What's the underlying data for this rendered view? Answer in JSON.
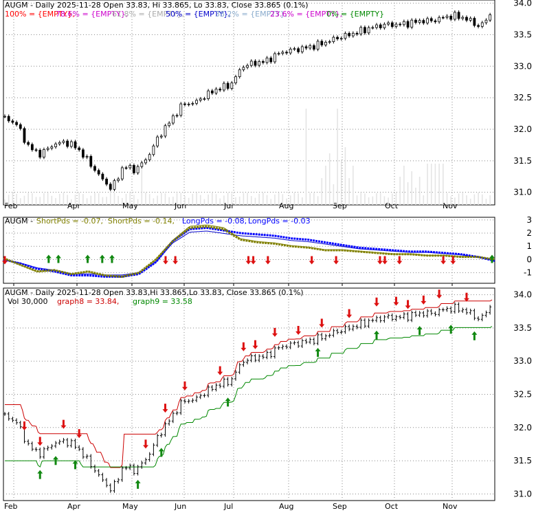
{
  "chart_data": [
    {
      "type": "candlestick",
      "panel": "price",
      "title": "AUGM - Daily 2025-11-28 Open 33.83, Hi 33.865, Lo 33.83, Close 33.865 (0.1%)",
      "fib_legend": [
        {
          "label": "100% = {EMPTY},",
          "color": "#ff0000"
        },
        {
          "label": "78.6% = {EMPTY},",
          "color": "#cc00cc"
        },
        {
          "label": "61.8% = {EMPTY},",
          "color": "#aaaaaa"
        },
        {
          "label": "50% = {EMPTY},",
          "color": "#0000cc"
        },
        {
          "label": "38.2% = {EMPTY},",
          "color": "#88aacc"
        },
        {
          "label": "23.6% = {EMPTY},",
          "color": "#cc00cc"
        },
        {
          "label": "0% = {EMPTY}",
          "color": "#008800"
        }
      ],
      "yticks": [
        "34.0",
        "33.5",
        "33.0",
        "32.5",
        "32.0",
        "31.5",
        "31.0"
      ],
      "ylim": [
        30.8,
        34.05
      ],
      "xticks": [
        "Feb",
        "Apr",
        "May",
        "Jun",
        "Jul",
        "Aug",
        "Sep",
        "Oct",
        "Nov"
      ],
      "closes_weekly": [
        32.18,
        32.08,
        31.72,
        31.6,
        31.75,
        31.8,
        31.72,
        31.5,
        31.25,
        31.05,
        31.42,
        31.35,
        31.55,
        31.9,
        32.15,
        32.4,
        32.42,
        32.55,
        32.65,
        32.7,
        33.0,
        33.05,
        33.08,
        33.2,
        33.25,
        33.28,
        33.32,
        33.38,
        33.45,
        33.5,
        33.56,
        33.62,
        33.66,
        33.66,
        33.68,
        33.72,
        33.72,
        33.78,
        33.8,
        33.74,
        33.62,
        33.86
      ]
    },
    {
      "type": "line",
      "panel": "oscillator",
      "title": "AUGM - ShortPds = -0.07, ShortPds = -0.14, LongPds = -0.08, LongPds = -0.03",
      "legend": [
        {
          "text": "AUGM -",
          "color": "#000000"
        },
        {
          "text": "ShortPds = -0.07,",
          "color": "#808000"
        },
        {
          "text": "ShortPds = -0.14,",
          "color": "#808000"
        },
        {
          "text": "LongPds = -0.08,",
          "color": "#0000ff"
        },
        {
          "text": "LongPds = -0.03",
          "color": "#0000ff"
        }
      ],
      "yticks": [
        "3",
        "2",
        "1",
        "0",
        "-1"
      ],
      "ylim": [
        -1.8,
        3.2
      ],
      "series": [
        {
          "name": "ShortPds",
          "color": "#808000",
          "values": [
            0.1,
            -0.4,
            -0.9,
            -0.8,
            -1.1,
            -0.9,
            -1.2,
            -1.3,
            -1.0,
            0.0,
            1.4,
            2.4,
            2.5,
            2.3,
            1.5,
            1.3,
            1.2,
            1.0,
            0.9,
            0.7,
            0.7,
            0.6,
            0.5,
            0.4,
            0.4,
            0.3,
            0.3,
            0.2,
            0.2,
            0.0
          ]
        },
        {
          "name": "LongPds",
          "color": "#0000ff",
          "values": [
            0.0,
            -0.3,
            -0.7,
            -0.9,
            -1.2,
            -1.2,
            -1.3,
            -1.3,
            -1.1,
            -0.2,
            1.4,
            2.3,
            2.4,
            2.2,
            2.0,
            1.9,
            1.8,
            1.6,
            1.5,
            1.3,
            1.1,
            0.9,
            0.8,
            0.7,
            0.6,
            0.6,
            0.5,
            0.4,
            0.2,
            -0.1
          ]
        }
      ],
      "signals": [
        {
          "t": 0.0,
          "dir": "down"
        },
        {
          "t": 0.09,
          "dir": "up"
        },
        {
          "t": 0.11,
          "dir": "up"
        },
        {
          "t": 0.17,
          "dir": "up"
        },
        {
          "t": 0.2,
          "dir": "up"
        },
        {
          "t": 0.22,
          "dir": "up"
        },
        {
          "t": 0.33,
          "dir": "down"
        },
        {
          "t": 0.35,
          "dir": "down"
        },
        {
          "t": 0.5,
          "dir": "down"
        },
        {
          "t": 0.51,
          "dir": "down"
        },
        {
          "t": 0.54,
          "dir": "down"
        },
        {
          "t": 0.63,
          "dir": "down"
        },
        {
          "t": 0.68,
          "dir": "down"
        },
        {
          "t": 0.77,
          "dir": "down"
        },
        {
          "t": 0.78,
          "dir": "down"
        },
        {
          "t": 0.81,
          "dir": "down"
        },
        {
          "t": 0.9,
          "dir": "down"
        },
        {
          "t": 0.92,
          "dir": "down"
        },
        {
          "t": 1.0,
          "dir": "up"
        }
      ],
      "xticks": [
        "Feb",
        "Apr",
        "May",
        "Jun",
        "Jul",
        "Aug",
        "Sep",
        "Oct",
        "Nov"
      ]
    },
    {
      "type": "line",
      "panel": "stops",
      "title": "AUGM - Daily 2025-11-28 Open 33.83,Hi 33.865,Lo 33.83, Close 33.865 (0.1%)",
      "legend": [
        {
          "text": "Vol 30,000",
          "color": "#000000"
        },
        {
          "text": "graph8 = 33.84,",
          "color": "#cc0000"
        },
        {
          "text": "graph9 = 33.58",
          "color": "#008800"
        }
      ],
      "yticks": [
        "34.0",
        "33.5",
        "33.0",
        "32.5",
        "32.0",
        "31.5",
        "31.0"
      ],
      "ylim": [
        30.9,
        34.1
      ],
      "xticks": [
        "Feb",
        "Apr",
        "May",
        "Jun",
        "Jul",
        "Aug",
        "Sep",
        "Oct",
        "Nov"
      ],
      "series": [
        {
          "name": "graph8",
          "color": "#cc0000"
        },
        {
          "name": "graph9",
          "color": "#008800"
        }
      ]
    }
  ]
}
